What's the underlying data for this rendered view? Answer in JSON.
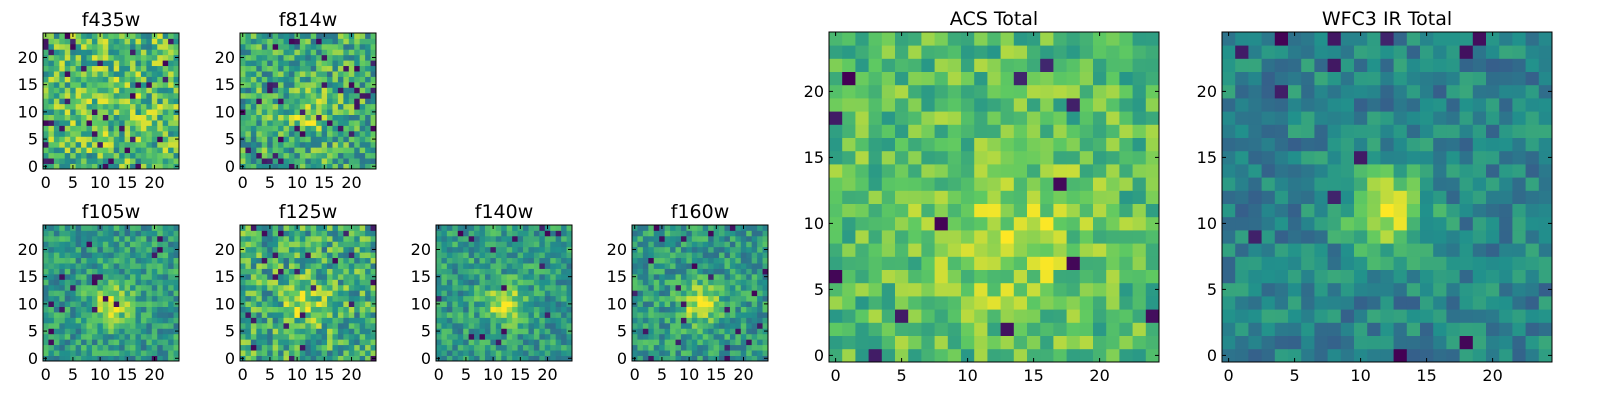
{
  "chart_data": [
    {
      "type": "heatmap",
      "title": "f435w",
      "seed": 11,
      "pattern": "noisy-bright",
      "x_ticks": [
        0,
        5,
        10,
        15,
        20
      ],
      "y_ticks": [
        0,
        5,
        10,
        15,
        20
      ],
      "xlim": [
        -0.5,
        24.5
      ],
      "ylim": [
        -0.5,
        24.5
      ]
    },
    {
      "type": "heatmap",
      "title": "f814w",
      "seed": 23,
      "pattern": "noisy-blob",
      "x_ticks": [
        0,
        5,
        10,
        15,
        20
      ],
      "y_ticks": [
        0,
        5,
        10,
        15,
        20
      ],
      "xlim": [
        -0.5,
        24.5
      ],
      "ylim": [
        -0.5,
        24.5
      ]
    },
    {
      "type": "heatmap",
      "title": "f105w",
      "seed": 37,
      "pattern": "blob",
      "x_ticks": [
        0,
        5,
        10,
        15,
        20
      ],
      "y_ticks": [
        0,
        5,
        10,
        15,
        20
      ],
      "xlim": [
        -0.5,
        24.5
      ],
      "ylim": [
        -0.5,
        24.5
      ]
    },
    {
      "type": "heatmap",
      "title": "f125w",
      "seed": 41,
      "pattern": "noisy-blob",
      "x_ticks": [
        0,
        5,
        10,
        15,
        20
      ],
      "y_ticks": [
        0,
        5,
        10,
        15,
        20
      ],
      "xlim": [
        -0.5,
        24.5
      ],
      "ylim": [
        -0.5,
        24.5
      ]
    },
    {
      "type": "heatmap",
      "title": "f140w",
      "seed": 53,
      "pattern": "blob",
      "x_ticks": [
        0,
        5,
        10,
        15,
        20
      ],
      "y_ticks": [
        0,
        5,
        10,
        15,
        20
      ],
      "xlim": [
        -0.5,
        24.5
      ],
      "ylim": [
        -0.5,
        24.5
      ]
    },
    {
      "type": "heatmap",
      "title": "f160w",
      "seed": 67,
      "pattern": "blob",
      "x_ticks": [
        0,
        5,
        10,
        15,
        20
      ],
      "y_ticks": [
        0,
        5,
        10,
        15,
        20
      ],
      "xlim": [
        -0.5,
        24.5
      ],
      "ylim": [
        -0.5,
        24.5
      ]
    },
    {
      "type": "heatmap",
      "title": "ACS Total",
      "seed": 79,
      "pattern": "bright",
      "x_ticks": [
        0,
        5,
        10,
        15,
        20
      ],
      "y_ticks": [
        0,
        5,
        10,
        15,
        20
      ],
      "xlim": [
        -0.5,
        24.5
      ],
      "ylim": [
        -0.5,
        24.5
      ]
    },
    {
      "type": "heatmap",
      "title": "WFC3 IR Total",
      "seed": 97,
      "pattern": "dim-blob",
      "x_ticks": [
        0,
        5,
        10,
        15,
        20
      ],
      "y_ticks": [
        0,
        5,
        10,
        15,
        20
      ],
      "xlim": [
        -0.5,
        24.5
      ],
      "ylim": [
        -0.5,
        24.5
      ]
    }
  ],
  "colormap": [
    "#440154",
    "#3b528b",
    "#21918c",
    "#5ec962",
    "#fde725"
  ]
}
